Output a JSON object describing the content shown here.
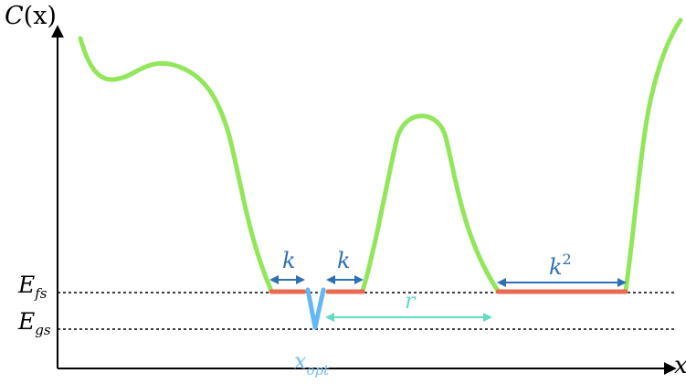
{
  "axes": {
    "y_label_main": "C",
    "y_label_arg": "(x)",
    "x_label": "x"
  },
  "levels": {
    "fs": {
      "main": "E",
      "sub": "fs"
    },
    "gs": {
      "main": "E",
      "sub": "gs"
    }
  },
  "annotations": {
    "k_left": "k",
    "k_right": "k",
    "k_squared_base": "k",
    "k_squared_exp": "2",
    "r": "r",
    "x_opt_main": "x",
    "x_opt_sub": "opt"
  },
  "colors": {
    "curve": "#92e65a",
    "plateau": "#e86a50",
    "well": "#63b8f2",
    "arrow_k": "#2f6fb5",
    "arrow_r": "#63dcc3",
    "x_opt_label": "#74bef2",
    "axis": "#000000"
  }
}
